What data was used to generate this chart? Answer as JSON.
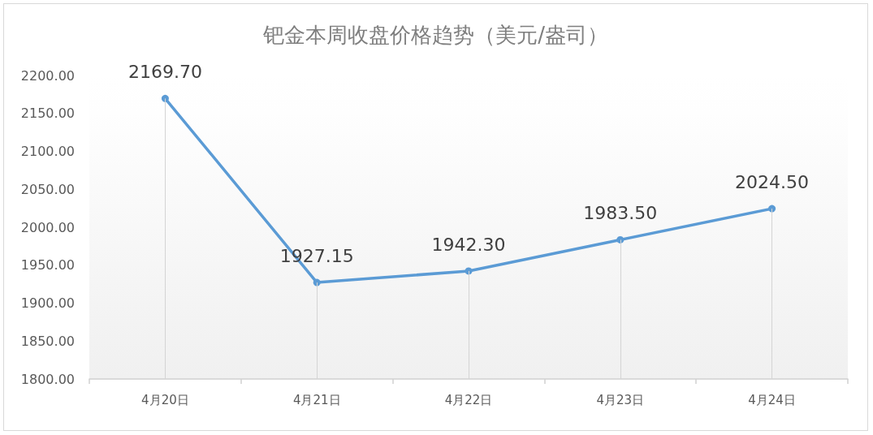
{
  "chart_data": {
    "type": "line",
    "title": "钯金本周收盘价格趋势（美元/盎司）",
    "categories": [
      "4月20日",
      "4月21日",
      "4月22日",
      "4月23日",
      "4月24日"
    ],
    "values": [
      2169.7,
      1927.15,
      1942.3,
      1983.5,
      2024.5
    ],
    "value_labels": [
      "2169.70",
      "1927.15",
      "1942.30",
      "1983.50",
      "2024.50"
    ],
    "color": "#5b9bd5",
    "ylim": [
      1800,
      2200
    ],
    "yticks": [
      {
        "value": 1800,
        "label": "1800.00"
      },
      {
        "value": 1850,
        "label": "1850.00"
      },
      {
        "value": 1900,
        "label": "1900.00"
      },
      {
        "value": 1950,
        "label": "1950.00"
      },
      {
        "value": 2000,
        "label": "2000.00"
      },
      {
        "value": 2050,
        "label": "2050.00"
      },
      {
        "value": 2100,
        "label": "2100.00"
      },
      {
        "value": 2150,
        "label": "2150.00"
      },
      {
        "value": 2200,
        "label": "2200.00"
      }
    ],
    "marker": "circle",
    "line_style": "solid"
  }
}
